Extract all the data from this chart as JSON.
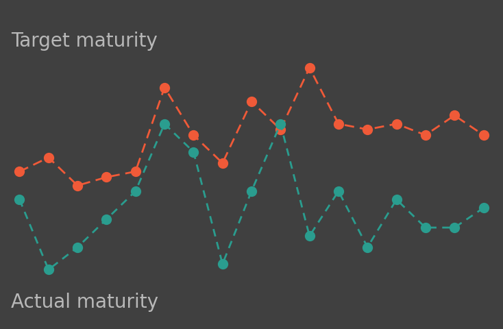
{
  "background_color": "#404040",
  "target_color": "#f05a38",
  "actual_color": "#2a9d8f",
  "target_label": "Target maturity",
  "actual_label": "Actual maturity",
  "label_fontsize": 20,
  "label_color": "#b8b8b8",
  "marker_size": 10,
  "line_width": 2.0,
  "x": [
    0,
    1,
    2,
    3,
    4,
    5,
    6,
    7,
    8,
    9,
    10,
    11,
    12,
    13,
    14,
    15,
    16
  ],
  "target_y": [
    5.5,
    6.0,
    5.0,
    5.3,
    5.5,
    8.5,
    6.8,
    5.8,
    8.0,
    7.0,
    9.2,
    7.2,
    7.0,
    7.2,
    6.8,
    7.5,
    6.8
  ],
  "actual_y": [
    4.5,
    2.0,
    2.8,
    3.8,
    4.8,
    7.2,
    6.2,
    2.2,
    4.8,
    7.2,
    3.2,
    4.8,
    2.8,
    4.5,
    3.5,
    3.5,
    4.2
  ]
}
